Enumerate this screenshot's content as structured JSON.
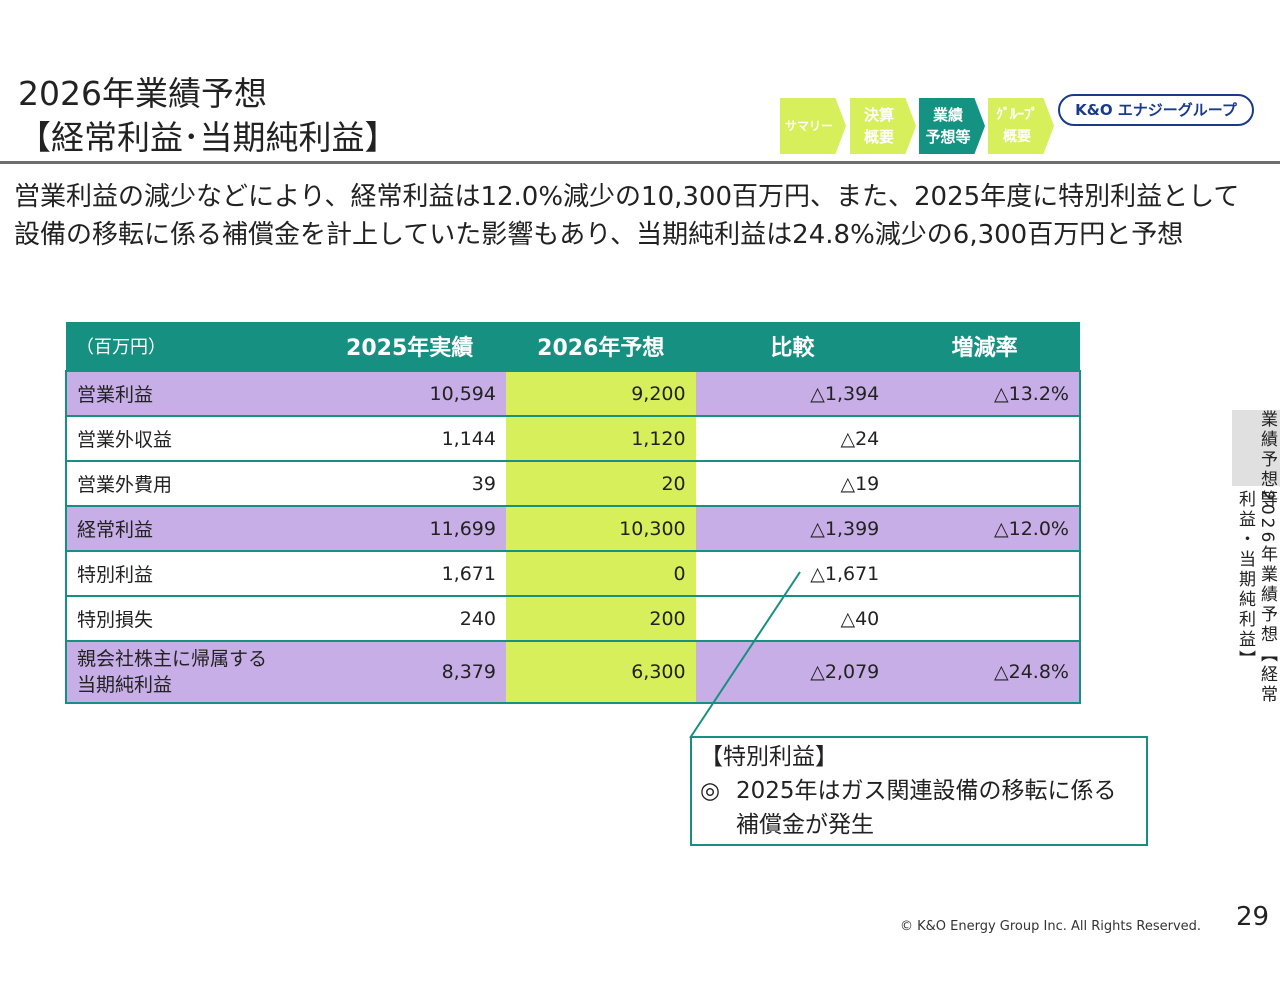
{
  "header": {
    "title_line1": "2026年業績予想",
    "title_line2": "【経常利益･当期純利益】"
  },
  "nav": {
    "items": [
      {
        "label": "サマリー"
      },
      {
        "label": "決算\n概要"
      },
      {
        "label": "業績\n予想等"
      },
      {
        "label": "ｸﾞﾙｰﾌﾟ\n概要"
      }
    ],
    "active_color": "#149382",
    "inactive_color": "#d7ef5b"
  },
  "logo": {
    "text": "K&O エナジーグループ"
  },
  "lead_text": "営業利益の減少などにより、経常利益は12.0%減少の10,300百万円、また、2025年度に特別利益として設備の移転に係る補償金を計上していた影響もあり、当期純利益は24.8%減少の6,300百万円と予想",
  "table": {
    "headers": {
      "unit": "（百万円）",
      "actual": "2025年実績",
      "forecast": "2026年予想",
      "diff": "比較",
      "rate": "増減率"
    },
    "rows": [
      {
        "label": "営業利益",
        "actual": "10,594",
        "forecast": "9,200",
        "diff": "△1,394",
        "rate": "△13.2%"
      },
      {
        "label": "営業外収益",
        "actual": "1,144",
        "forecast": "1,120",
        "diff": "△24",
        "rate": ""
      },
      {
        "label": "営業外費用",
        "actual": "39",
        "forecast": "20",
        "diff": "△19",
        "rate": ""
      },
      {
        "label": "経常利益",
        "actual": "11,699",
        "forecast": "10,300",
        "diff": "△1,399",
        "rate": "△12.0%"
      },
      {
        "label": "特別利益",
        "actual": "1,671",
        "forecast": "0",
        "diff": "△1,671",
        "rate": ""
      },
      {
        "label": "特別損失",
        "actual": "240",
        "forecast": "200",
        "diff": "△40",
        "rate": ""
      },
      {
        "label_line1": "親会社株主に帰属する",
        "label_line2": "当期純利益",
        "actual": "8,379",
        "forecast": "6,300",
        "diff": "△2,079",
        "rate": "△24.8%"
      }
    ],
    "header_color": "#169081",
    "highlight_color": "#c7aee6",
    "forecast_color": "#d7ef5b"
  },
  "callout": {
    "title": "【特別利益】",
    "mark": "◎",
    "line1": "2025年はガス関連設備の移転に係る",
    "line2": "補償金が発生"
  },
  "side_label": {
    "col1": "業績予想等",
    "col2": "2026年業績予想【経常利益・当期純利益】"
  },
  "footer": {
    "copyright": "© K&O Energy Group Inc. All Rights Reserved.",
    "page_number": "29"
  }
}
